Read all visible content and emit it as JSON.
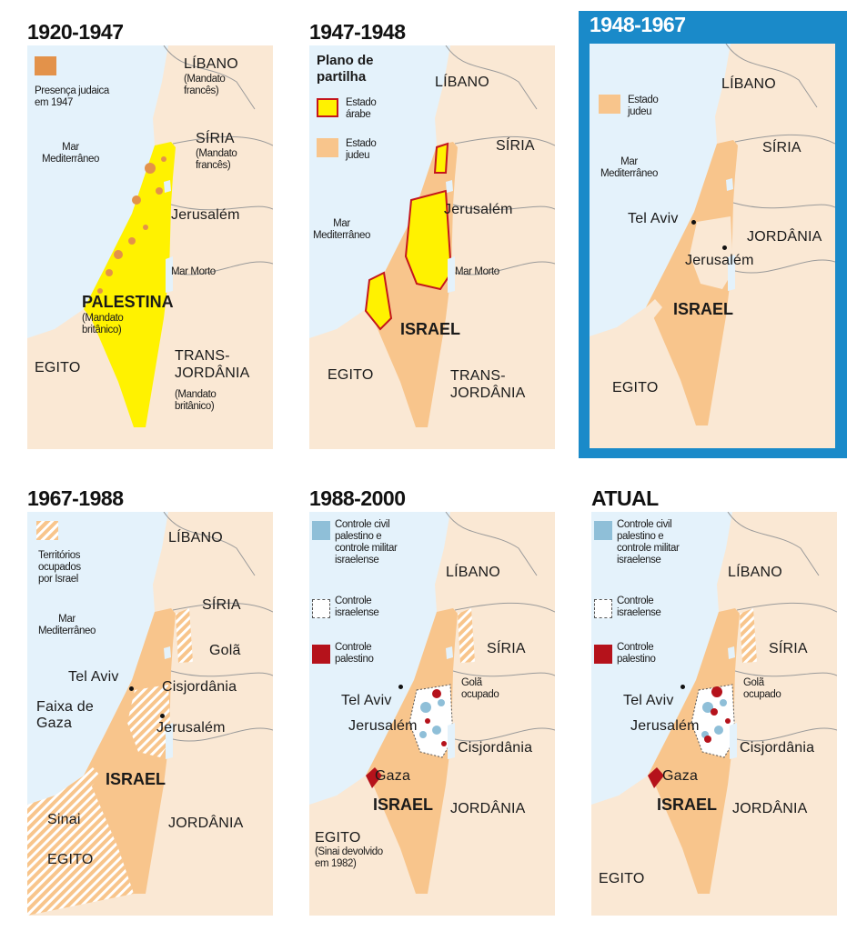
{
  "colors": {
    "sea": "#e4f2fb",
    "land": "#fae8d4",
    "israel": "#f8c58c",
    "arab_state": "#fff200",
    "jewish_presence": "#e3924a",
    "civil_control": "#8fbfd8",
    "palestinian_control": "#b5121b",
    "highlight_frame": "#1a8ac9"
  },
  "panels": [
    {
      "title": "1920-1947",
      "legend": [
        {
          "swatch": "jewish-presence",
          "label": "Presença judaica\nem 1947"
        }
      ],
      "labels": {
        "libano": "LÍBANO",
        "libano_sub": "(Mandato\nfrancês)",
        "siria": "SÍRIA",
        "siria_sub": "(Mandato\nfrancês)",
        "mar": "Mar\nMediterrâneo",
        "jerusalem": "Jerusalém",
        "mar_morto": "Mar Morto",
        "palestina": "PALESTINA",
        "palestina_sub": "(Mandato\nbritânico)",
        "egito": "EGITO",
        "transjordania": "TRANS-\nJORDÂNIA",
        "transjordania_sub": "(Mandato\nbritânico)"
      }
    },
    {
      "title": "1947-1948",
      "legend_title": "Plano de\npartilha",
      "legend": [
        {
          "swatch": "arab-state",
          "label": "Estado\nárabe"
        },
        {
          "swatch": "jewish-state",
          "label": "Estado\njudeu"
        }
      ],
      "labels": {
        "libano": "LÍBANO",
        "siria": "SÍRIA",
        "mar": "Mar\nMediterrâneo",
        "jerusalem": "Jerusalém",
        "mar_morto": "Mar Morto",
        "israel": "ISRAEL",
        "egito": "EGITO",
        "transjordania": "TRANS-\nJORDÂNIA"
      }
    },
    {
      "title": "1948-1967",
      "highlighted": true,
      "legend": [
        {
          "swatch": "jewish-state",
          "label": "Estado\njudeu"
        }
      ],
      "labels": {
        "libano": "LÍBANO",
        "siria": "SÍRIA",
        "mar": "Mar\nMediterrâneo",
        "tel_aviv": "Tel Aviv",
        "jordania": "JORDÂNIA",
        "jerusalem": "Jerusalém",
        "israel": "ISRAEL",
        "egito": "EGITO"
      }
    },
    {
      "title": "1967-1988",
      "legend": [
        {
          "swatch": "occupied",
          "label": "Territórios\nocupados\npor Israel"
        }
      ],
      "labels": {
        "libano": "LÍBANO",
        "siria": "SÍRIA",
        "gola": "Golã",
        "mar": "Mar\nMediterrâneo",
        "tel_aviv": "Tel Aviv",
        "cisjordania": "Cisjordânia",
        "gaza": "Faixa de\nGaza",
        "jerusalem": "Jerusalém",
        "israel": "ISRAEL",
        "sinai": "Sinai",
        "jordania": "JORDÂNIA",
        "egito": "EGITO"
      }
    },
    {
      "title": "1988-2000",
      "legend": [
        {
          "swatch": "civil-control",
          "label": "Controle civil\npalestino e\ncontrole militar\nisraelense"
        },
        {
          "swatch": "israeli-control",
          "label": "Controle\nisraelense"
        },
        {
          "swatch": "palestinian-control",
          "label": "Controle\npalestino"
        }
      ],
      "labels": {
        "libano": "LÍBANO",
        "siria": "SÍRIA",
        "gola": "Golã\nocupado",
        "tel_aviv": "Tel Aviv",
        "jerusalem": "Jerusalém",
        "cisjordania": "Cisjordânia",
        "gaza": "Gaza",
        "israel": "ISRAEL",
        "jordania": "JORDÂNIA",
        "egito": "EGITO",
        "egito_sub": "(Sinai devolvido\nem 1982)"
      }
    },
    {
      "title": "ATUAL",
      "legend": [
        {
          "swatch": "civil-control",
          "label": "Controle civil\npalestino e\ncontrole militar\nisraelense"
        },
        {
          "swatch": "israeli-control",
          "label": "Controle\nisraelense"
        },
        {
          "swatch": "palestinian-control",
          "label": "Controle\npalestino"
        }
      ],
      "labels": {
        "libano": "LÍBANO",
        "siria": "SÍRIA",
        "gola": "Golã\nocupado",
        "tel_aviv": "Tel Aviv",
        "jerusalem": "Jerusalém",
        "cisjordania": "Cisjordânia",
        "gaza": "Gaza",
        "israel": "ISRAEL",
        "jordania": "JORDÂNIA",
        "egito": "EGITO"
      }
    }
  ]
}
